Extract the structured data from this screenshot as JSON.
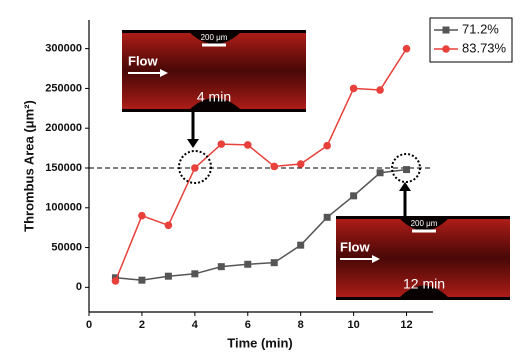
{
  "chart_data": {
    "type": "line",
    "x_label": "Time (min)",
    "y_label": "Thrombus Area (μm²)",
    "x": [
      1,
      2,
      3,
      4,
      5,
      6,
      7,
      8,
      9,
      10,
      11,
      12
    ],
    "series": [
      {
        "name": "71.2%",
        "color": "#555555",
        "marker": "square",
        "values": [
          12000,
          9000,
          14000,
          17000,
          26000,
          29000,
          31000,
          53000,
          88000,
          115000,
          144000,
          148000
        ]
      },
      {
        "name": "83.73%",
        "color": "#e8403a",
        "marker": "circle",
        "values": [
          8000,
          90000,
          78000,
          150000,
          180000,
          179000,
          152000,
          155000,
          178000,
          250000,
          248000,
          300000
        ]
      }
    ],
    "xlim": [
      0,
      13
    ],
    "xticks": [
      0,
      2,
      4,
      6,
      8,
      10,
      12
    ],
    "ylim": [
      -31000,
      336000
    ],
    "yticks": [
      0,
      50000,
      100000,
      150000,
      200000,
      250000,
      300000
    ],
    "reference_line": 150000,
    "legend": "top-right",
    "insets": [
      {
        "flow": "Flow",
        "scale": "200 μm",
        "time": "4 min"
      },
      {
        "flow": "Flow",
        "scale": "200 μm",
        "time": "12 min"
      }
    ]
  }
}
